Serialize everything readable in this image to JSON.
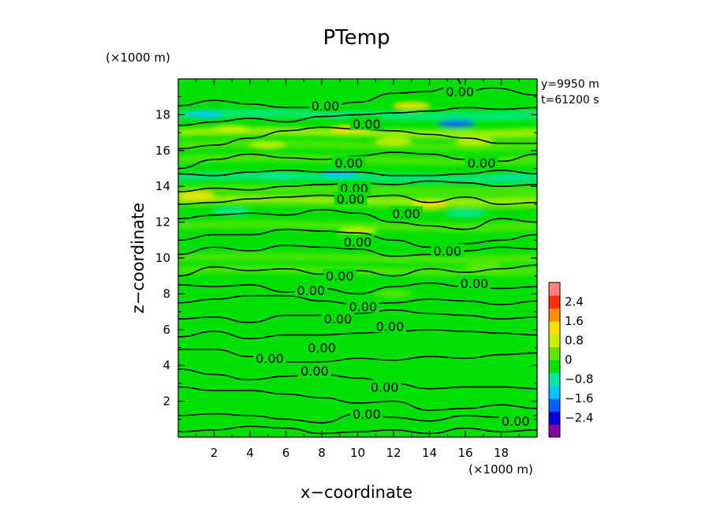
{
  "chart_data": {
    "type": "heatmap",
    "title": "PTemp",
    "xlabel": "x−coordinate",
    "ylabel": "z−coordinate",
    "x_unit": "(×1000 m)",
    "z_unit": "(×1000 m)",
    "xlim": [
      0,
      20
    ],
    "ylim": [
      0,
      20
    ],
    "x_ticks": [
      "2",
      "4",
      "6",
      "8",
      "10",
      "12",
      "14",
      "16",
      "18"
    ],
    "y_ticks": [
      "2",
      "4",
      "6",
      "8",
      "10",
      "12",
      "14",
      "16",
      "18"
    ],
    "info": [
      "y=9950 m",
      "t=61200 s"
    ],
    "contour_label": "0.00",
    "colorbar": {
      "ticks": [
        "2.4",
        "1.6",
        "0.8",
        "0",
        "−0.8",
        "−1.6",
        "−2.4"
      ],
      "range": [
        -3.2,
        3.2
      ],
      "colors": [
        "#8a00a8",
        "#0000d8",
        "#0060ff",
        "#00c8ff",
        "#00e8a0",
        "#00e000",
        "#60e800",
        "#c8f000",
        "#ffe000",
        "#ff9000",
        "#ff3000",
        "#ff8080"
      ]
    },
    "bands": [
      {
        "z": 18.0,
        "value": -0.9
      },
      {
        "z": 17.0,
        "value": 0.7
      },
      {
        "z": 16.3,
        "value": 0.5
      },
      {
        "z": 15.5,
        "value": 0.3
      },
      {
        "z": 14.5,
        "value": -0.8
      },
      {
        "z": 13.8,
        "value": 0.4
      },
      {
        "z": 13.2,
        "value": 0.8
      },
      {
        "z": 12.6,
        "value": -0.5
      },
      {
        "z": 11.8,
        "value": 0.3
      },
      {
        "z": 11.0,
        "value": -0.3
      },
      {
        "z": 10.0,
        "value": 0.2
      },
      {
        "z": 9.3,
        "value": 0.3
      }
    ],
    "spots": [
      {
        "x": 1.5,
        "z": 18.0,
        "value": -1.4
      },
      {
        "x": 15.5,
        "z": 17.5,
        "value": -1.7
      },
      {
        "x": 9.0,
        "z": 14.7,
        "value": -1.3
      },
      {
        "x": 13.0,
        "z": 18.5,
        "value": 1.5
      },
      {
        "x": 9.5,
        "z": 17.2,
        "value": 1.3
      },
      {
        "x": 3.0,
        "z": 17.2,
        "value": 1.0
      },
      {
        "x": 5.0,
        "z": 16.3,
        "value": 0.9
      },
      {
        "x": 12.0,
        "z": 16.5,
        "value": 0.9
      },
      {
        "x": 16.5,
        "z": 16.5,
        "value": 0.9
      },
      {
        "x": 1.0,
        "z": 13.5,
        "value": 1.1
      },
      {
        "x": 14.0,
        "z": 13.0,
        "value": 1.1
      },
      {
        "x": 18.5,
        "z": 14.5,
        "value": -1.0
      },
      {
        "x": 5.5,
        "z": 14.6,
        "value": -0.9
      },
      {
        "x": 3.0,
        "z": 12.6,
        "value": -0.7
      },
      {
        "x": 16.0,
        "z": 12.5,
        "value": -0.8
      },
      {
        "x": 10.0,
        "z": 11.5,
        "value": 0.6
      },
      {
        "x": 17.0,
        "z": 9.5,
        "value": 0.5
      },
      {
        "x": 12.0,
        "z": 8.0,
        "value": 0.4
      }
    ],
    "contours": [
      [
        [
          0,
          18.5
        ],
        [
          2,
          18.8
        ],
        [
          4,
          18.6
        ],
        [
          6,
          18.4
        ],
        [
          8,
          18.4
        ],
        [
          10,
          18.7
        ],
        [
          12,
          19.2
        ],
        [
          14,
          19.3
        ],
        [
          15,
          19.5
        ]
      ],
      [
        [
          15.5,
          20
        ],
        [
          16,
          19.3
        ],
        [
          17.5,
          19.5
        ],
        [
          20,
          19.1
        ]
      ],
      [
        [
          0,
          17.4
        ],
        [
          2,
          17.6
        ],
        [
          4,
          17.8
        ],
        [
          6,
          17.6
        ],
        [
          8,
          17.9
        ],
        [
          10,
          18.0
        ],
        [
          12,
          18.1
        ],
        [
          14,
          18.2
        ],
        [
          16,
          18.4
        ],
        [
          18,
          18.3
        ],
        [
          20,
          18.4
        ]
      ],
      [
        [
          0,
          16.1
        ],
        [
          2,
          16.3
        ],
        [
          4,
          16.7
        ],
        [
          6,
          17.1
        ],
        [
          8,
          17.3
        ],
        [
          10,
          17.2
        ],
        [
          12,
          17.1
        ],
        [
          14,
          16.9
        ],
        [
          16,
          16.7
        ],
        [
          18,
          16.4
        ],
        [
          20,
          16.4
        ]
      ],
      [
        [
          0,
          15.0
        ],
        [
          2,
          15.5
        ],
        [
          4,
          15.8
        ],
        [
          6,
          15.6
        ],
        [
          8,
          15.5
        ],
        [
          10,
          15.7
        ],
        [
          12,
          15.9
        ],
        [
          14,
          15.8
        ],
        [
          16,
          15.5
        ],
        [
          18,
          15.4
        ],
        [
          20,
          15.8
        ]
      ],
      [
        [
          0,
          14.7
        ],
        [
          2,
          14.6
        ],
        [
          4,
          14.8
        ],
        [
          6,
          14.9
        ],
        [
          8,
          14.8
        ],
        [
          10,
          14.8
        ],
        [
          12,
          14.6
        ],
        [
          14,
          14.6
        ],
        [
          16,
          14.7
        ],
        [
          18,
          14.9
        ],
        [
          20,
          14.7
        ]
      ],
      [
        [
          0,
          13.7
        ],
        [
          2,
          13.9
        ],
        [
          4,
          13.8
        ],
        [
          6,
          14.0
        ],
        [
          8,
          14.1
        ],
        [
          10,
          14.2
        ],
        [
          12,
          14.1
        ],
        [
          14,
          14.3
        ],
        [
          16,
          14.2
        ],
        [
          18,
          14.0
        ],
        [
          20,
          14.1
        ]
      ],
      [
        [
          0,
          13.0
        ],
        [
          2,
          13.1
        ],
        [
          4,
          13.3
        ],
        [
          6,
          13.4
        ],
        [
          8,
          13.5
        ],
        [
          10,
          13.4
        ],
        [
          12,
          13.5
        ],
        [
          14,
          13.1
        ],
        [
          16,
          13.4
        ],
        [
          18,
          13.0
        ],
        [
          20,
          13.1
        ]
      ],
      [
        [
          0,
          12.2
        ],
        [
          2,
          12.4
        ],
        [
          4,
          12.5
        ],
        [
          6,
          12.4
        ],
        [
          8,
          12.7
        ],
        [
          10,
          12.5
        ],
        [
          12,
          12.0
        ],
        [
          14,
          11.8
        ],
        [
          16,
          11.6
        ],
        [
          18,
          12.2
        ],
        [
          20,
          12.0
        ]
      ],
      [
        [
          0,
          11.0
        ],
        [
          2,
          11.3
        ],
        [
          4,
          11.3
        ],
        [
          6,
          11.6
        ],
        [
          8,
          11.5
        ],
        [
          10,
          11.4
        ],
        [
          12,
          11.0
        ],
        [
          14,
          10.6
        ],
        [
          16,
          10.8
        ],
        [
          18,
          11.0
        ],
        [
          20,
          11.3
        ]
      ],
      [
        [
          0,
          10.2
        ],
        [
          2,
          10.6
        ],
        [
          4,
          10.4
        ],
        [
          6,
          10.7
        ],
        [
          8,
          10.6
        ],
        [
          10,
          10.5
        ],
        [
          12,
          10.1
        ],
        [
          14,
          10.2
        ],
        [
          16,
          10.4
        ],
        [
          18,
          10.6
        ],
        [
          20,
          10.5
        ]
      ],
      [
        [
          0,
          9.0
        ],
        [
          2,
          9.5
        ],
        [
          4,
          9.3
        ],
        [
          6,
          9.4
        ],
        [
          8,
          9.1
        ],
        [
          10,
          9.3
        ],
        [
          12,
          9.0
        ],
        [
          14,
          9.4
        ],
        [
          16,
          9.2
        ],
        [
          18,
          9.4
        ],
        [
          20,
          9.6
        ]
      ],
      [
        [
          0,
          8.5
        ],
        [
          2,
          8.4
        ],
        [
          4,
          8.5
        ],
        [
          6,
          8.1
        ],
        [
          8,
          8.3
        ],
        [
          10,
          8.0
        ],
        [
          12,
          8.4
        ],
        [
          14,
          8.6
        ],
        [
          16,
          8.4
        ],
        [
          18,
          8.3
        ],
        [
          20,
          8.4
        ]
      ],
      [
        [
          0,
          7.5
        ],
        [
          2,
          7.7
        ],
        [
          4,
          7.9
        ],
        [
          6,
          7.9
        ],
        [
          8,
          7.6
        ],
        [
          10,
          7.4
        ],
        [
          12,
          7.5
        ],
        [
          14,
          7.7
        ],
        [
          16,
          7.6
        ],
        [
          18,
          7.4
        ],
        [
          20,
          7.6
        ]
      ],
      [
        [
          0,
          6.6
        ],
        [
          2,
          6.7
        ],
        [
          4,
          6.4
        ],
        [
          6,
          6.8
        ],
        [
          8,
          6.8
        ],
        [
          10,
          6.9
        ],
        [
          12,
          7.1
        ],
        [
          14,
          6.9
        ],
        [
          16,
          6.8
        ],
        [
          18,
          6.6
        ],
        [
          20,
          6.7
        ]
      ],
      [
        [
          0,
          5.6
        ],
        [
          2,
          5.9
        ],
        [
          4,
          5.5
        ],
        [
          6,
          5.7
        ],
        [
          8,
          5.7
        ],
        [
          10,
          5.8
        ],
        [
          12,
          5.9
        ],
        [
          14,
          6.0
        ],
        [
          16,
          5.9
        ],
        [
          18,
          5.8
        ],
        [
          20,
          5.7
        ]
      ],
      [
        [
          0,
          4.9
        ],
        [
          2,
          4.9
        ],
        [
          4,
          4.5
        ],
        [
          6,
          4.2
        ],
        [
          8,
          4.2
        ],
        [
          10,
          4.4
        ],
        [
          12,
          4.3
        ],
        [
          14,
          4.5
        ],
        [
          16,
          4.4
        ],
        [
          18,
          4.6
        ],
        [
          20,
          4.7
        ]
      ],
      [
        [
          0,
          3.8
        ],
        [
          2,
          3.5
        ],
        [
          4,
          3.2
        ],
        [
          6,
          3.4
        ],
        [
          8,
          3.5
        ],
        [
          10,
          3.3
        ],
        [
          12,
          3.0
        ],
        [
          14,
          2.7
        ],
        [
          16,
          2.8
        ],
        [
          18,
          2.8
        ],
        [
          20,
          2.7
        ]
      ],
      [
        [
          0,
          2.8
        ],
        [
          2,
          2.6
        ],
        [
          4,
          2.6
        ],
        [
          6,
          2.4
        ],
        [
          8,
          2.2
        ],
        [
          10,
          1.9
        ],
        [
          12,
          2.0
        ],
        [
          14,
          1.5
        ],
        [
          16,
          1.6
        ],
        [
          18,
          1.8
        ],
        [
          20,
          1.6
        ]
      ],
      [
        [
          0,
          1.2
        ],
        [
          2,
          1.3
        ],
        [
          4,
          1.2
        ],
        [
          6,
          1.0
        ],
        [
          8,
          0.8
        ],
        [
          10,
          1.3
        ],
        [
          12,
          1.1
        ],
        [
          14,
          0.9
        ],
        [
          16,
          1.2
        ],
        [
          18,
          1.1
        ],
        [
          20,
          1.2
        ]
      ],
      [
        [
          0,
          0.3
        ],
        [
          2,
          0.4
        ],
        [
          4,
          0.6
        ],
        [
          6,
          0.5
        ],
        [
          8,
          0.2
        ],
        [
          10,
          0.3
        ],
        [
          12,
          0.4
        ],
        [
          14,
          0.2
        ],
        [
          16,
          0.5
        ],
        [
          18,
          0.3
        ],
        [
          20,
          0.4
        ]
      ]
    ],
    "contour_labels": [
      {
        "x": 8.2,
        "z": 18.5
      },
      {
        "x": 10.5,
        "z": 17.5
      },
      {
        "x": 15.7,
        "z": 19.3
      },
      {
        "x": 9.5,
        "z": 15.3
      },
      {
        "x": 16.9,
        "z": 15.3
      },
      {
        "x": 9.8,
        "z": 13.9
      },
      {
        "x": 9.6,
        "z": 13.3
      },
      {
        "x": 12.7,
        "z": 12.5
      },
      {
        "x": 10.0,
        "z": 10.9
      },
      {
        "x": 15.0,
        "z": 10.4
      },
      {
        "x": 9.0,
        "z": 9.0
      },
      {
        "x": 16.5,
        "z": 8.6
      },
      {
        "x": 7.4,
        "z": 8.2
      },
      {
        "x": 10.3,
        "z": 7.3
      },
      {
        "x": 8.9,
        "z": 6.6
      },
      {
        "x": 11.8,
        "z": 6.2
      },
      {
        "x": 8.0,
        "z": 5.0
      },
      {
        "x": 5.1,
        "z": 4.4
      },
      {
        "x": 7.6,
        "z": 3.7
      },
      {
        "x": 11.5,
        "z": 2.8
      },
      {
        "x": 10.5,
        "z": 1.3
      },
      {
        "x": 18.8,
        "z": 0.9
      }
    ]
  }
}
